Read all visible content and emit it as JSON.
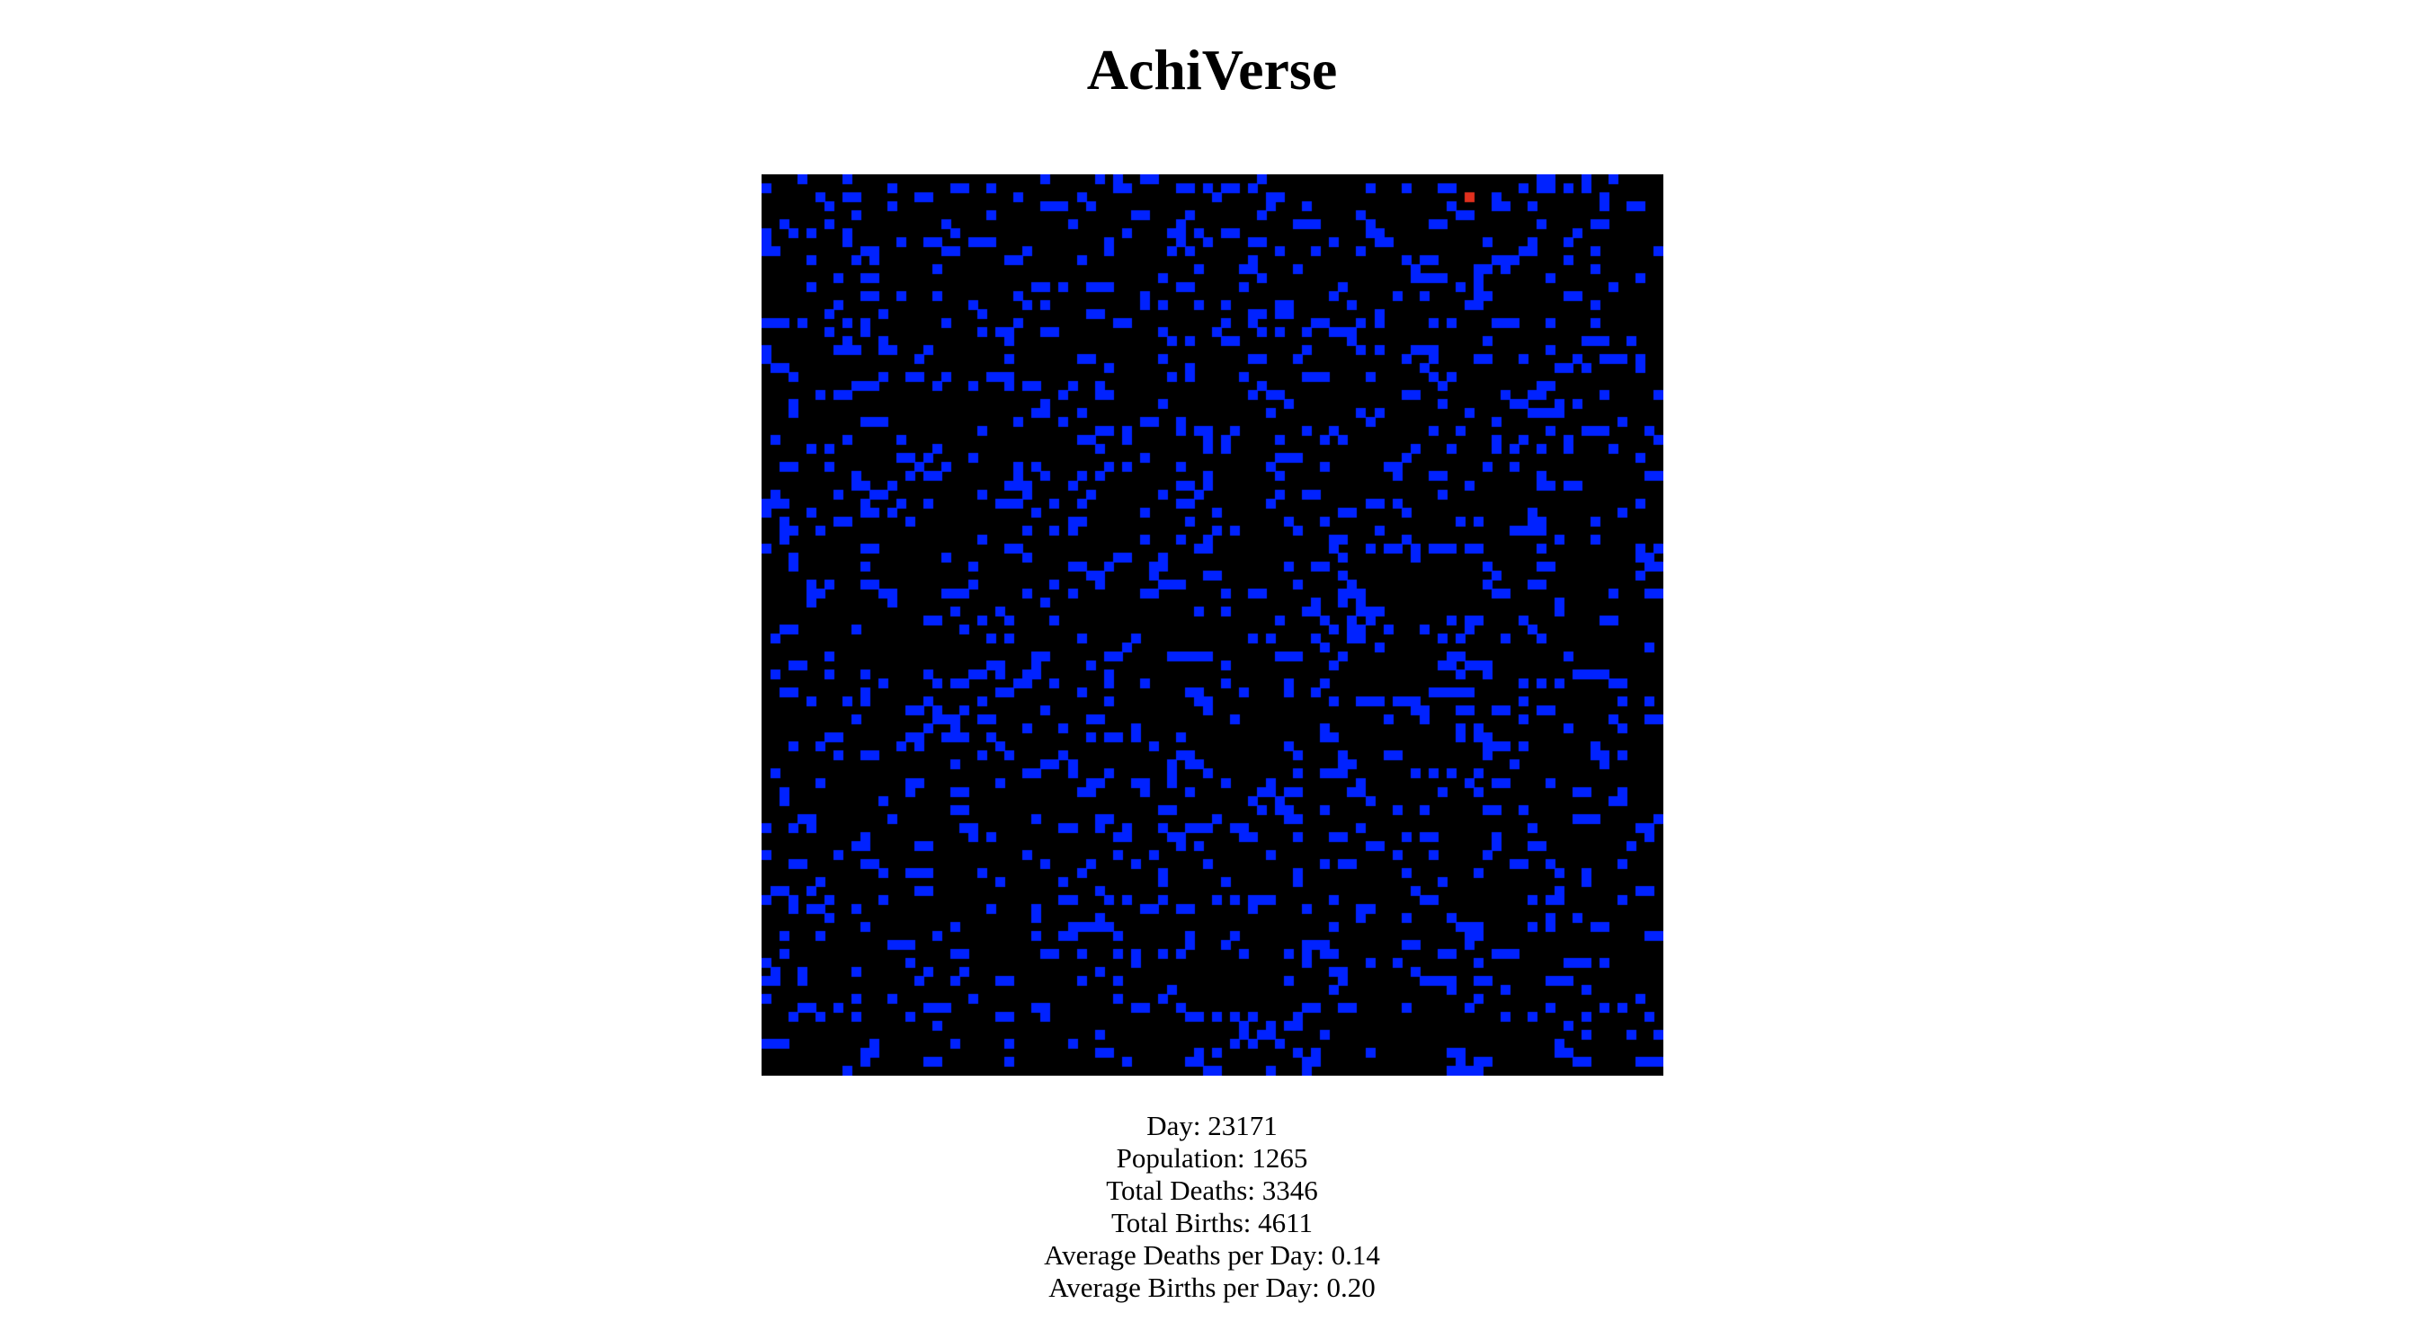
{
  "app": {
    "title": "AchiVerse"
  },
  "world": {
    "background_color": "#000000",
    "creature_color": "#0022ff",
    "special_color": "#e0301e"
  },
  "stats": {
    "day": "Day: 23171",
    "population": "Population: 1265",
    "total_deaths": "Total Deaths: 3346",
    "total_births": "Total Births: 4611",
    "avg_deaths": "Average Deaths per Day: 0.14",
    "avg_births": "Average Births per Day: 0.20"
  }
}
